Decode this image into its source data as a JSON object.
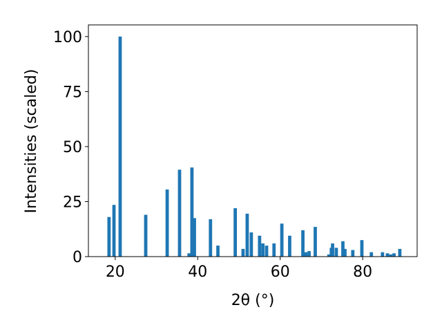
{
  "chart_data": {
    "type": "bar",
    "x_label": "2θ (°)",
    "y_label": "Intensities (scaled)",
    "x": [
      18.5,
      19.7,
      21.2,
      27.4,
      32.6,
      35.6,
      37.9,
      38.6,
      39.2,
      43.1,
      44.9,
      49.1,
      51.0,
      52.0,
      53.0,
      55.0,
      55.8,
      56.7,
      58.5,
      60.4,
      62.3,
      65.5,
      66.2,
      67.0,
      68.5,
      71.8,
      72.4,
      72.7,
      73.6,
      75.2,
      75.7,
      77.6,
      79.8,
      82.1,
      84.8,
      86.0,
      86.8,
      87.6,
      89.0
    ],
    "values": [
      18,
      23.5,
      100,
      19,
      30.5,
      39.5,
      1.5,
      40.5,
      17.5,
      17,
      5,
      22,
      3.5,
      19.5,
      11,
      9.5,
      6,
      5,
      6,
      15,
      9.5,
      12,
      2,
      2.5,
      13.5,
      1,
      4,
      6,
      4,
      7,
      3.5,
      3,
      7.5,
      2,
      2,
      1.5,
      1,
      1.5,
      3.5
    ],
    "color": "#1f77b4",
    "xlim": [
      13.5,
      93.2
    ],
    "xticks": [
      20,
      40,
      60,
      80
    ],
    "ylim": [
      0,
      105.3
    ],
    "yticks": [
      0,
      25,
      50,
      75,
      100
    ],
    "grid": false
  }
}
